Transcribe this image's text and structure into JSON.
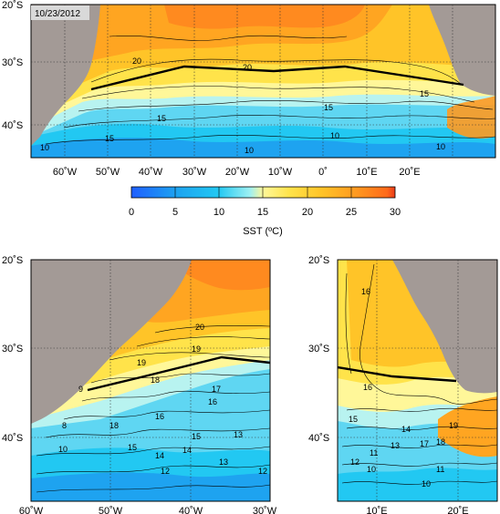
{
  "date_label": "10/23/2012",
  "colorbar": {
    "ticks": [
      "0",
      "5",
      "10",
      "15",
      "20",
      "25",
      "30"
    ],
    "label": "SST (ºC)",
    "colors": [
      "#1f5fff",
      "#1ea3f0",
      "#22c8f2",
      "#6fe3f5",
      "#b8f3f0",
      "#fff799",
      "#ffe34a",
      "#ffc428",
      "#ffa521",
      "#ff8a1f",
      "#e83a1a"
    ]
  },
  "top_map": {
    "lat_ticks": [
      "20˚S",
      "30˚S",
      "40˚S"
    ],
    "lon_ticks": [
      "60˚W",
      "50˚W",
      "40˚W",
      "30˚W",
      "20˚W",
      "10˚W",
      "0˚",
      "10˚E",
      "20˚E"
    ],
    "contour_labels": [
      "20",
      "20",
      "15",
      "15",
      "15",
      "15",
      "10",
      "10",
      "10",
      "10"
    ]
  },
  "bottom_left_map": {
    "lat_ticks": [
      "20˚S",
      "30˚S",
      "40˚S"
    ],
    "lon_ticks": [
      "60˚W",
      "50˚W",
      "40˚W",
      "30˚W"
    ],
    "contour_labels": [
      "20",
      "19",
      "19",
      "18",
      "18",
      "17",
      "16",
      "16",
      "15",
      "15",
      "14",
      "14",
      "13",
      "13",
      "12",
      "12",
      "10",
      "9",
      "8"
    ]
  },
  "bottom_right_map": {
    "lat_ticks": [
      "20˚S",
      "30˚S",
      "40˚S"
    ],
    "lon_ticks": [
      "10˚E",
      "20˚E"
    ],
    "contour_labels": [
      "16",
      "16",
      "15",
      "14",
      "13",
      "12",
      "11",
      "11",
      "10",
      "10",
      "17",
      "18",
      "19"
    ]
  }
}
